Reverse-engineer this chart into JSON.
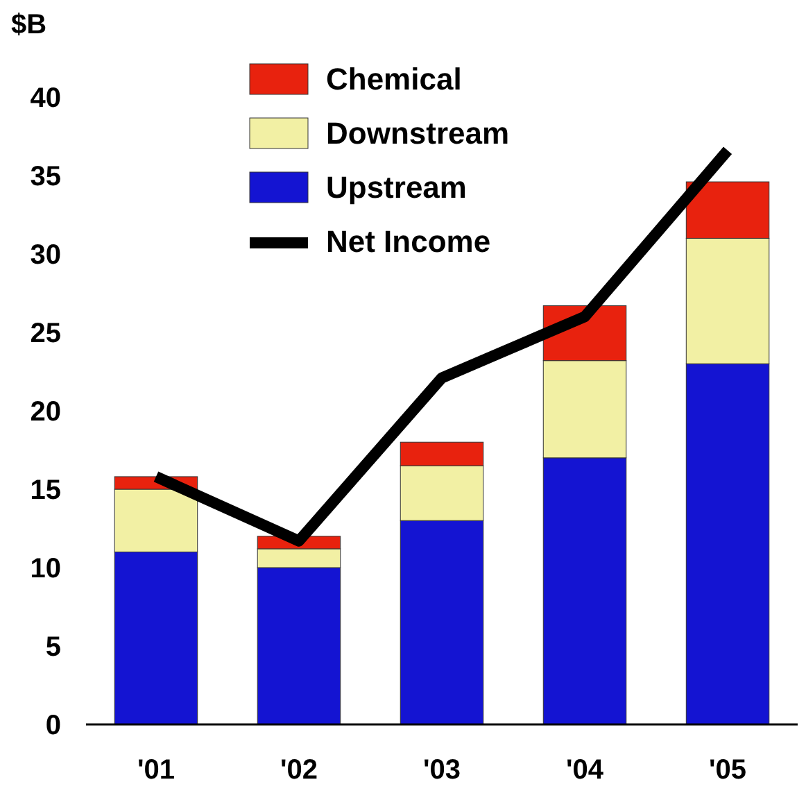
{
  "chart_data": {
    "type": "bar",
    "stacked": true,
    "ylabel": "$B",
    "categories": [
      "'01",
      "'02",
      "'03",
      "'04",
      "'05"
    ],
    "series": [
      {
        "name": "Upstream",
        "color": "#1414d2",
        "values": [
          11,
          10,
          13,
          17,
          23
        ]
      },
      {
        "name": "Downstream",
        "color": "#f2f0a4",
        "values": [
          4,
          1.2,
          3.5,
          6.2,
          8
        ]
      },
      {
        "name": "Chemical",
        "color": "#e8220e",
        "values": [
          0.8,
          0.8,
          1.5,
          3.5,
          3.6
        ]
      },
      {
        "name": "Net Income",
        "type": "line",
        "color": "#000000",
        "values": [
          15.8,
          11.7,
          22.1,
          26,
          36.6
        ]
      }
    ],
    "ylim": [
      0,
      40
    ],
    "yticks": [
      0,
      5,
      10,
      15,
      20,
      25,
      30,
      35,
      40
    ],
    "grid": false,
    "legend": "top left"
  }
}
